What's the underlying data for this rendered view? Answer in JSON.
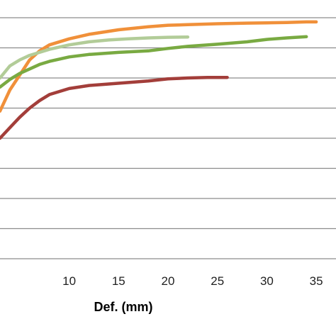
{
  "chart_data": {
    "type": "line",
    "title": "",
    "xlabel": "Def. (mm)",
    "ylabel": "",
    "x_ticks": [
      10,
      15,
      20,
      25,
      30,
      35
    ],
    "xlim": [
      3,
      37
    ],
    "ylim": [
      0,
      8
    ],
    "grid": true,
    "legend": "none",
    "series": [
      {
        "color": "#F0903A",
        "x": [
          3,
          4,
          5,
          6,
          7,
          8,
          10,
          12,
          15,
          18,
          20,
          22,
          25,
          28,
          30,
          32,
          34,
          35
        ],
        "y": [
          4.9,
          5.6,
          6.1,
          6.6,
          6.9,
          7.1,
          7.3,
          7.45,
          7.6,
          7.7,
          7.75,
          7.77,
          7.8,
          7.82,
          7.83,
          7.84,
          7.86,
          7.86
        ]
      },
      {
        "color": "#B2CC98",
        "x": [
          3,
          4,
          5,
          6,
          7,
          8,
          10,
          12,
          14,
          16,
          18,
          20,
          22
        ],
        "y": [
          6.0,
          6.4,
          6.6,
          6.75,
          6.85,
          6.95,
          7.1,
          7.2,
          7.26,
          7.3,
          7.33,
          7.35,
          7.36
        ]
      },
      {
        "color": "#79AA42",
        "x": [
          3,
          4,
          5,
          6,
          7,
          8,
          10,
          12,
          15,
          18,
          20,
          22,
          25,
          28,
          30,
          32,
          34
        ],
        "y": [
          5.7,
          5.95,
          6.15,
          6.3,
          6.45,
          6.55,
          6.7,
          6.78,
          6.85,
          6.9,
          6.98,
          7.05,
          7.12,
          7.2,
          7.28,
          7.33,
          7.37
        ]
      },
      {
        "color": "#A33E3A",
        "x": [
          3,
          4,
          5,
          6,
          7,
          8,
          10,
          12,
          14,
          16,
          18,
          20,
          22,
          24,
          26
        ],
        "y": [
          4.0,
          4.35,
          4.7,
          5.0,
          5.25,
          5.45,
          5.65,
          5.75,
          5.8,
          5.85,
          5.9,
          5.97,
          6.0,
          6.02,
          6.02
        ]
      }
    ]
  }
}
